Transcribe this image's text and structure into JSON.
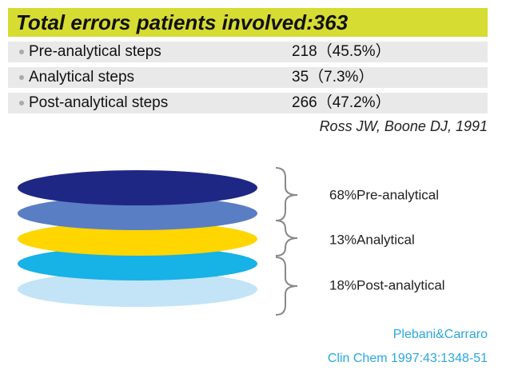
{
  "header": {
    "title": "Total errors patients involved:363"
  },
  "table": {
    "rows": [
      [
        "Pre-analytical steps",
        "218（45.5%）"
      ],
      [
        "Analytical steps",
        "35（7.3%）"
      ],
      [
        "Post-analytical steps",
        "266（47.2%）"
      ]
    ]
  },
  "citation": "Ross JW, Boone DJ, 1991",
  "diagram": {
    "labels": [
      "68%Pre-analytical",
      "13%Analytical",
      "18%Post-analytical"
    ]
  },
  "source": [
    "Plebani&Carraro",
    "Clin Chem 1997:43:1348-51"
  ]
}
